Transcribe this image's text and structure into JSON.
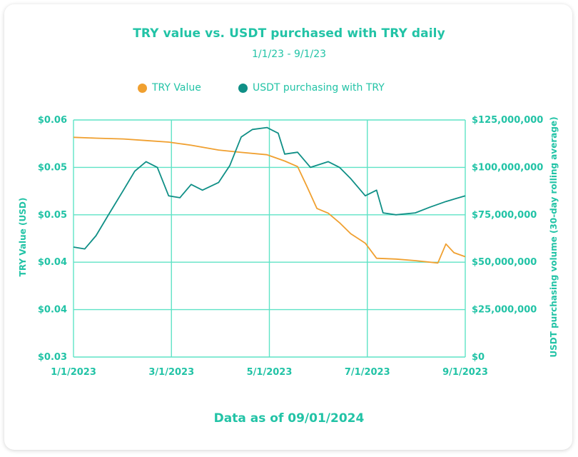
{
  "title": "TRY value vs. USDT purchased with TRY daily",
  "subtitle": "1/1/23 - 9/1/23",
  "footer": "Data as of 09/01/2024",
  "colors": {
    "accent": "#22c3a6",
    "try": "#f0a030",
    "usdt": "#0f8f86",
    "grid": "#5fe3c6"
  },
  "chart_data": {
    "type": "line",
    "xlabel": "",
    "x_ticks": [
      "1/1/2023",
      "3/1/2023",
      "5/1/2023",
      "7/1/2023",
      "9/1/2023"
    ],
    "xlim": [
      "2023-01-01",
      "2023-09-01"
    ],
    "left_axis": {
      "label": "TRY Value (USD)",
      "ticks": [
        "$0.06",
        "$0.05",
        "$0.05",
        "$0.04",
        "$0.04",
        "$0.03"
      ],
      "ylim": [
        0.03,
        0.06
      ]
    },
    "right_axis": {
      "label": "USDT purchasing volume (30-day rolling average)",
      "ticks": [
        "$125,000,000",
        "$100,000,000",
        "$75,000,000",
        "$50,000,000",
        "$25,000,000",
        "$0"
      ],
      "ylim": [
        0,
        125000000
      ]
    },
    "grid": true,
    "legend_position": "top-center",
    "series": [
      {
        "name": "TRY Value",
        "axis": "left",
        "color": "#f0a030",
        "points": [
          [
            "2023-01-01",
            0.0578
          ],
          [
            "2023-01-15",
            0.0577
          ],
          [
            "2023-02-01",
            0.0576
          ],
          [
            "2023-02-15",
            0.0574
          ],
          [
            "2023-03-01",
            0.0572
          ],
          [
            "2023-03-15",
            0.0568
          ],
          [
            "2023-04-01",
            0.0562
          ],
          [
            "2023-04-15",
            0.0559
          ],
          [
            "2023-05-01",
            0.0556
          ],
          [
            "2023-05-12",
            0.0548
          ],
          [
            "2023-05-20",
            0.0541
          ],
          [
            "2023-05-26",
            0.0515
          ],
          [
            "2023-06-01",
            0.0488
          ],
          [
            "2023-06-08",
            0.0482
          ],
          [
            "2023-06-15",
            0.047
          ],
          [
            "2023-06-22",
            0.0456
          ],
          [
            "2023-07-01",
            0.0444
          ],
          [
            "2023-07-08",
            0.0425
          ],
          [
            "2023-07-20",
            0.0424
          ],
          [
            "2023-08-01",
            0.0422
          ],
          [
            "2023-08-15",
            0.0419
          ],
          [
            "2023-08-20",
            0.0443
          ],
          [
            "2023-08-25",
            0.0432
          ],
          [
            "2023-09-01",
            0.0427
          ]
        ]
      },
      {
        "name": "USDT purchasing with TRY",
        "axis": "right",
        "color": "#0f8f86",
        "points": [
          [
            "2023-01-01",
            58000000
          ],
          [
            "2023-01-08",
            57000000
          ],
          [
            "2023-01-15",
            64000000
          ],
          [
            "2023-01-22",
            74000000
          ],
          [
            "2023-02-01",
            88000000
          ],
          [
            "2023-02-08",
            98000000
          ],
          [
            "2023-02-15",
            103000000
          ],
          [
            "2023-02-22",
            100000000
          ],
          [
            "2023-03-01",
            85000000
          ],
          [
            "2023-03-08",
            84000000
          ],
          [
            "2023-03-15",
            91000000
          ],
          [
            "2023-03-22",
            88000000
          ],
          [
            "2023-04-01",
            92000000
          ],
          [
            "2023-04-08",
            101000000
          ],
          [
            "2023-04-15",
            116000000
          ],
          [
            "2023-04-22",
            120000000
          ],
          [
            "2023-05-01",
            121000000
          ],
          [
            "2023-05-08",
            118000000
          ],
          [
            "2023-05-12",
            107000000
          ],
          [
            "2023-05-20",
            108000000
          ],
          [
            "2023-05-28",
            100000000
          ],
          [
            "2023-06-08",
            103000000
          ],
          [
            "2023-06-15",
            100000000
          ],
          [
            "2023-06-22",
            94000000
          ],
          [
            "2023-07-01",
            85000000
          ],
          [
            "2023-07-08",
            88000000
          ],
          [
            "2023-07-12",
            76000000
          ],
          [
            "2023-07-20",
            75000000
          ],
          [
            "2023-08-01",
            76000000
          ],
          [
            "2023-08-10",
            79000000
          ],
          [
            "2023-08-20",
            82000000
          ],
          [
            "2023-09-01",
            85000000
          ]
        ]
      }
    ]
  }
}
